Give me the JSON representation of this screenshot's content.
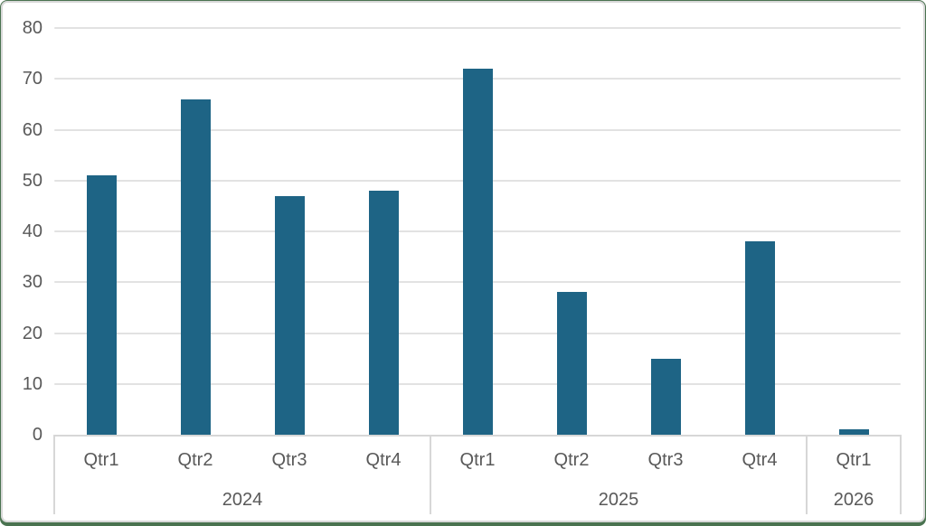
{
  "chart_data": {
    "type": "bar",
    "title": "",
    "xlabel": "",
    "ylabel": "",
    "groups": [
      {
        "label": "2024",
        "categories": [
          "Qtr1",
          "Qtr2",
          "Qtr3",
          "Qtr4"
        ],
        "values": [
          51,
          66,
          47,
          48
        ]
      },
      {
        "label": "2025",
        "categories": [
          "Qtr1",
          "Qtr2",
          "Qtr3",
          "Qtr4"
        ],
        "values": [
          72,
          28,
          15,
          38
        ]
      },
      {
        "label": "2026",
        "categories": [
          "Qtr1"
        ],
        "values": [
          1
        ]
      }
    ],
    "ylim": [
      0,
      80
    ],
    "yticks": [
      0,
      10,
      20,
      30,
      40,
      50,
      60,
      70,
      80
    ],
    "grid": true,
    "legend": false,
    "colors": {
      "bar": "#1E6485",
      "gridline": "#e2e2e2",
      "axis_box_line": "#d7d7d7",
      "tick_label": "#595959",
      "frame_green": "#4a7350",
      "card_border": "#d8d8d8",
      "background": "#ffffff"
    }
  }
}
